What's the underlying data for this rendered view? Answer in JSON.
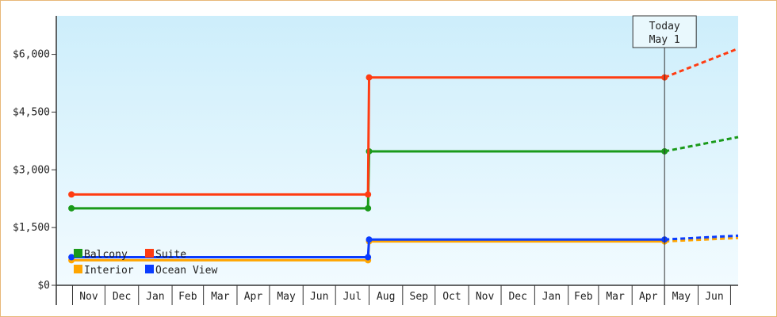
{
  "chart_data": {
    "type": "line",
    "title": "",
    "xlabel": "",
    "ylabel": "",
    "ylim": [
      0,
      6000
    ],
    "y_ticks": [
      0,
      1500,
      3000,
      4500,
      6000
    ],
    "y_tick_labels": [
      "$0",
      "$1,500",
      "$3,000",
      "$4,500",
      "$6,000"
    ],
    "x_tick_labels": [
      "Nov",
      "Dec",
      "Jan",
      "Feb",
      "Mar",
      "Apr",
      "May",
      "Jun",
      "Jul",
      "Aug",
      "Sep",
      "Oct",
      "Nov",
      "Dec",
      "Jan",
      "Feb",
      "Mar",
      "Apr",
      "May",
      "Jun"
    ],
    "grid": false,
    "legend": {
      "placement": "bottom-left",
      "entries": [
        {
          "name": "Balcony",
          "color": "#1a9a1a"
        },
        {
          "name": "Suite",
          "color": "#ff3c12"
        },
        {
          "name": "Interior",
          "color": "#ffa500"
        },
        {
          "name": "Ocean View",
          "color": "#0a3cff"
        }
      ]
    },
    "today_marker": {
      "line1": "Today",
      "line2": "May 1",
      "x": "2025-05-01"
    },
    "series": [
      {
        "name": "Balcony",
        "color": "#1a9a1a",
        "points": [
          {
            "x": "2023-10-31",
            "y": 2000
          },
          {
            "x": "2024-07-31",
            "y": 2000
          },
          {
            "x": "2024-08-01",
            "y": 3480
          },
          {
            "x": "2025-05-01",
            "y": 3480
          }
        ],
        "forecast": [
          {
            "x": "2025-05-01",
            "y": 3480
          },
          {
            "x": "2025-07-08",
            "y": 3850
          }
        ]
      },
      {
        "name": "Suite",
        "color": "#ff3c12",
        "points": [
          {
            "x": "2023-10-31",
            "y": 2360
          },
          {
            "x": "2024-07-31",
            "y": 2360
          },
          {
            "x": "2024-08-01",
            "y": 5400
          },
          {
            "x": "2025-05-01",
            "y": 5400
          }
        ],
        "forecast": [
          {
            "x": "2025-05-01",
            "y": 5400
          },
          {
            "x": "2025-07-08",
            "y": 6150
          }
        ]
      },
      {
        "name": "Interior",
        "color": "#ffa500",
        "points": [
          {
            "x": "2023-10-31",
            "y": 650
          },
          {
            "x": "2024-07-31",
            "y": 650
          },
          {
            "x": "2024-08-01",
            "y": 1140
          },
          {
            "x": "2025-05-01",
            "y": 1140
          }
        ],
        "forecast": [
          {
            "x": "2025-05-01",
            "y": 1140
          },
          {
            "x": "2025-07-08",
            "y": 1230
          }
        ]
      },
      {
        "name": "Ocean View",
        "color": "#0a3cff",
        "points": [
          {
            "x": "2023-10-31",
            "y": 730
          },
          {
            "x": "2024-07-31",
            "y": 730
          },
          {
            "x": "2024-08-01",
            "y": 1190
          },
          {
            "x": "2025-05-01",
            "y": 1190
          }
        ],
        "forecast": [
          {
            "x": "2025-05-01",
            "y": 1190
          },
          {
            "x": "2025-07-08",
            "y": 1290
          }
        ]
      }
    ]
  }
}
